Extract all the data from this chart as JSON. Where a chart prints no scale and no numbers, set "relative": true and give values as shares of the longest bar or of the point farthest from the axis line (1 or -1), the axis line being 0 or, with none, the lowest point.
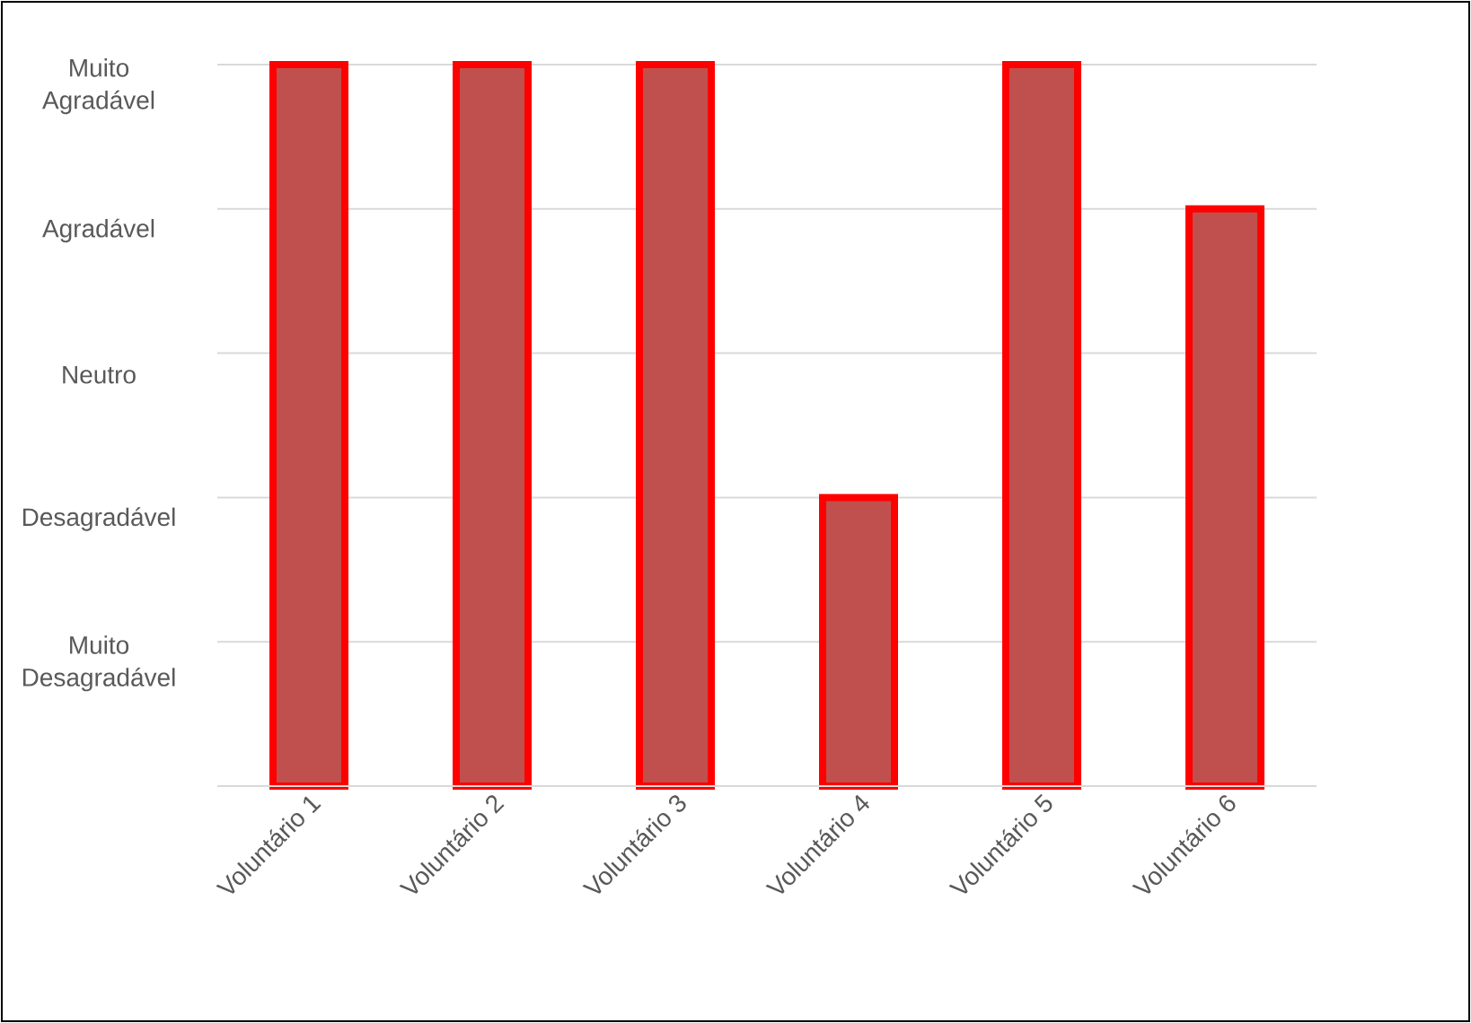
{
  "chart_data": {
    "type": "bar",
    "categories": [
      "Voluntário 1",
      "Voluntário 2",
      "Voluntário 3",
      "Voluntário 4",
      "Voluntário 5",
      "Voluntário 6"
    ],
    "values": [
      1,
      1,
      1,
      0.4,
      1,
      0.8
    ],
    "relative": true,
    "color": "#c0504d",
    "annotations": [
      "Muito Desagradável",
      "Desagradável",
      "Neutro",
      "Agradável",
      "Muito Agradável"
    ],
    "grid": "y"
  }
}
